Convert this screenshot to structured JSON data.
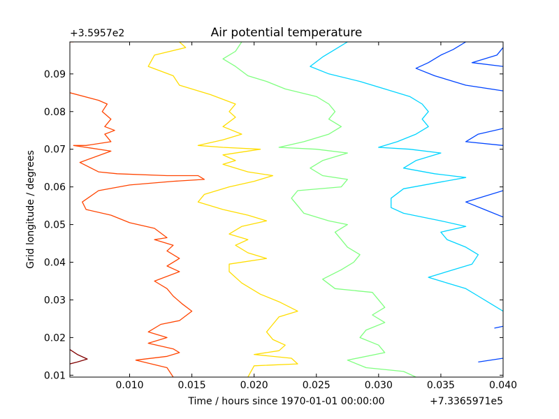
{
  "chart_data": {
    "type": "contour",
    "title": "Air potential temperature",
    "xlabel": "Time / hours since 1970-01-01 00:00:00",
    "ylabel": "Grid longitude / degrees",
    "x_offset_label": "+7.3365971e5",
    "y_offset_label": "+3.5957e2",
    "xlim": [
      0.0052,
      0.04
    ],
    "ylim": [
      0.0095,
      0.0985
    ],
    "xticks": [
      0.01,
      0.015,
      0.02,
      0.025,
      0.03,
      0.035,
      0.04
    ],
    "yticks": [
      0.01,
      0.02,
      0.03,
      0.04,
      0.05,
      0.06,
      0.07,
      0.08,
      0.09
    ],
    "xtick_labels": [
      "0.010",
      "0.015",
      "0.020",
      "0.025",
      "0.030",
      "0.035",
      "0.040"
    ],
    "ytick_labels": [
      "0.01",
      "0.02",
      "0.03",
      "0.04",
      "0.05",
      "0.06",
      "0.07",
      "0.08",
      "0.09"
    ],
    "colormap": "jet",
    "grid": false,
    "contours": [
      {
        "color": "#800000",
        "paths": [
          [
            [
              0.0052,
              0.0168
            ],
            [
              0.0058,
              0.0155
            ],
            [
              0.0066,
              0.0143
            ],
            [
              0.0058,
              0.0135
            ],
            [
              0.0052,
              0.013
            ]
          ]
        ]
      },
      {
        "color": "#ff4400",
        "paths": [
          [
            [
              0.0052,
              0.0985
            ],
            [
              0.0055,
              0.0985
            ]
          ],
          [
            [
              0.0052,
              0.085
            ],
            [
              0.0075,
              0.083
            ],
            [
              0.0082,
              0.082
            ],
            [
              0.0078,
              0.08
            ],
            [
              0.0085,
              0.078
            ],
            [
              0.008,
              0.076
            ],
            [
              0.0088,
              0.075
            ],
            [
              0.008,
              0.074
            ],
            [
              0.0085,
              0.072
            ],
            [
              0.0065,
              0.071
            ],
            [
              0.0055,
              0.071
            ],
            [
              0.0085,
              0.0695
            ],
            [
              0.006,
              0.0665
            ],
            [
              0.0075,
              0.064
            ],
            [
              0.009,
              0.0635
            ],
            [
              0.013,
              0.063
            ],
            [
              0.0155,
              0.063
            ],
            [
              0.016,
              0.062
            ],
            [
              0.0135,
              0.0615
            ],
            [
              0.01,
              0.0605
            ],
            [
              0.0075,
              0.059
            ],
            [
              0.0062,
              0.056
            ],
            [
              0.0065,
              0.054
            ],
            [
              0.0085,
              0.0525
            ],
            [
              0.01,
              0.0505
            ],
            [
              0.012,
              0.049
            ],
            [
              0.013,
              0.0465
            ],
            [
              0.012,
              0.046
            ],
            [
              0.0135,
              0.0445
            ],
            [
              0.013,
              0.043
            ],
            [
              0.014,
              0.041
            ],
            [
              0.013,
              0.039
            ],
            [
              0.014,
              0.0375
            ],
            [
              0.012,
              0.035
            ],
            [
              0.013,
              0.033
            ],
            [
              0.0135,
              0.031
            ],
            [
              0.0142,
              0.029
            ],
            [
              0.015,
              0.027
            ],
            [
              0.014,
              0.0245
            ],
            [
              0.0125,
              0.0235
            ],
            [
              0.0115,
              0.0215
            ],
            [
              0.013,
              0.02
            ],
            [
              0.0115,
              0.0185
            ],
            [
              0.0135,
              0.017
            ],
            [
              0.014,
              0.016
            ],
            [
              0.013,
              0.015
            ],
            [
              0.0105,
              0.014
            ],
            [
              0.013,
              0.012
            ],
            [
              0.0135,
              0.0095
            ]
          ]
        ]
      },
      {
        "color": "#ffdd00",
        "paths": [
          [
            [
              0.014,
              0.0985
            ],
            [
              0.0145,
              0.097
            ],
            [
              0.012,
              0.095
            ],
            [
              0.0115,
              0.092
            ],
            [
              0.0135,
              0.0895
            ],
            [
              0.014,
              0.087
            ],
            [
              0.0165,
              0.0845
            ],
            [
              0.0185,
              0.082
            ],
            [
              0.018,
              0.08
            ],
            [
              0.0185,
              0.0785
            ],
            [
              0.0175,
              0.076
            ],
            [
              0.019,
              0.074
            ],
            [
              0.0175,
              0.0725
            ],
            [
              0.0155,
              0.071
            ],
            [
              0.0175,
              0.0705
            ],
            [
              0.0205,
              0.07
            ],
            [
              0.0175,
              0.0685
            ],
            [
              0.0185,
              0.067
            ],
            [
              0.0175,
              0.066
            ],
            [
              0.0195,
              0.064
            ],
            [
              0.0215,
              0.063
            ],
            [
              0.02,
              0.0615
            ],
            [
              0.018,
              0.06
            ],
            [
              0.016,
              0.058
            ],
            [
              0.0155,
              0.056
            ],
            [
              0.0175,
              0.054
            ],
            [
              0.0195,
              0.0525
            ],
            [
              0.021,
              0.051
            ],
            [
              0.019,
              0.0495
            ],
            [
              0.018,
              0.0475
            ],
            [
              0.0195,
              0.046
            ],
            [
              0.0185,
              0.0445
            ],
            [
              0.0195,
              0.0425
            ],
            [
              0.021,
              0.041
            ],
            [
              0.018,
              0.0395
            ],
            [
              0.018,
              0.0375
            ],
            [
              0.019,
              0.0345
            ],
            [
              0.0205,
              0.0315
            ],
            [
              0.022,
              0.0295
            ],
            [
              0.0235,
              0.027
            ],
            [
              0.022,
              0.0255
            ],
            [
              0.0215,
              0.0235
            ],
            [
              0.021,
              0.0215
            ],
            [
              0.0215,
              0.0195
            ],
            [
              0.0225,
              0.018
            ],
            [
              0.022,
              0.0165
            ],
            [
              0.02,
              0.0155
            ],
            [
              0.023,
              0.0145
            ],
            [
              0.0235,
              0.013
            ],
            [
              0.02,
              0.0125
            ],
            [
              0.0195,
              0.0095
            ]
          ]
        ]
      },
      {
        "color": "#7fff7f",
        "paths": [
          [
            [
              0.019,
              0.0985
            ],
            [
              0.0185,
              0.096
            ],
            [
              0.0175,
              0.094
            ],
            [
              0.0185,
              0.092
            ],
            [
              0.0195,
              0.0895
            ],
            [
              0.021,
              0.088
            ],
            [
              0.0225,
              0.086
            ],
            [
              0.025,
              0.084
            ],
            [
              0.026,
              0.082
            ],
            [
              0.0265,
              0.08
            ],
            [
              0.026,
              0.078
            ],
            [
              0.027,
              0.076
            ],
            [
              0.026,
              0.074
            ],
            [
              0.024,
              0.072
            ],
            [
              0.022,
              0.0705
            ],
            [
              0.025,
              0.07
            ],
            [
              0.0275,
              0.069
            ],
            [
              0.0255,
              0.067
            ],
            [
              0.0245,
              0.065
            ],
            [
              0.0255,
              0.063
            ],
            [
              0.0275,
              0.062
            ],
            [
              0.027,
              0.06
            ],
            [
              0.0235,
              0.059
            ],
            [
              0.023,
              0.057
            ],
            [
              0.0235,
              0.055
            ],
            [
              0.024,
              0.053
            ],
            [
              0.026,
              0.051
            ],
            [
              0.0275,
              0.05
            ],
            [
              0.0265,
              0.048
            ],
            [
              0.027,
              0.046
            ],
            [
              0.0275,
              0.044
            ],
            [
              0.0285,
              0.042
            ],
            [
              0.028,
              0.04
            ],
            [
              0.027,
              0.038
            ],
            [
              0.0255,
              0.0355
            ],
            [
              0.0265,
              0.033
            ],
            [
              0.0295,
              0.032
            ],
            [
              0.03,
              0.03
            ],
            [
              0.0305,
              0.028
            ],
            [
              0.0295,
              0.026
            ],
            [
              0.0305,
              0.024
            ],
            [
              0.029,
              0.022
            ],
            [
              0.0285,
              0.02
            ],
            [
              0.03,
              0.018
            ],
            [
              0.0305,
              0.016
            ],
            [
              0.0275,
              0.014
            ],
            [
              0.029,
              0.012
            ],
            [
              0.032,
              0.011
            ],
            [
              0.033,
              0.0095
            ]
          ]
        ]
      },
      {
        "color": "#00d4ff",
        "paths": [
          [
            [
              0.0275,
              0.0985
            ],
            [
              0.0265,
              0.0965
            ],
            [
              0.0255,
              0.0945
            ],
            [
              0.0245,
              0.092
            ],
            [
              0.026,
              0.09
            ],
            [
              0.0285,
              0.088
            ],
            [
              0.0305,
              0.086
            ],
            [
              0.0325,
              0.084
            ],
            [
              0.0335,
              0.082
            ],
            [
              0.034,
              0.08
            ],
            [
              0.0335,
              0.078
            ],
            [
              0.034,
              0.076
            ],
            [
              0.033,
              0.074
            ],
            [
              0.0315,
              0.072
            ],
            [
              0.03,
              0.0705
            ],
            [
              0.0325,
              0.07
            ],
            [
              0.035,
              0.069
            ],
            [
              0.033,
              0.067
            ],
            [
              0.032,
              0.065
            ],
            [
              0.0345,
              0.0635
            ],
            [
              0.037,
              0.0625
            ],
            [
              0.0345,
              0.061
            ],
            [
              0.032,
              0.0595
            ],
            [
              0.031,
              0.057
            ],
            [
              0.031,
              0.0545
            ],
            [
              0.032,
              0.053
            ],
            [
              0.035,
              0.051
            ],
            [
              0.037,
              0.0495
            ],
            [
              0.035,
              0.048
            ],
            [
              0.0355,
              0.046
            ],
            [
              0.037,
              0.044
            ],
            [
              0.038,
              0.042
            ],
            [
              0.0375,
              0.0395
            ],
            [
              0.034,
              0.036
            ],
            [
              0.0355,
              0.0345
            ],
            [
              0.037,
              0.033
            ],
            [
              0.038,
              0.031
            ],
            [
              0.039,
              0.029
            ],
            [
              0.04,
              0.027
            ]
          ],
          [
            [
              0.0035,
              0.0095
            ],
            [
              0.004,
              0.01
            ]
          ]
        ]
      },
      {
        "color": "#0044ff",
        "paths": [
          [
            [
              0.037,
              0.0985
            ],
            [
              0.036,
              0.0965
            ],
            [
              0.035,
              0.095
            ],
            [
              0.034,
              0.093
            ],
            [
              0.033,
              0.0915
            ],
            [
              0.0345,
              0.0895
            ],
            [
              0.037,
              0.087
            ],
            [
              0.04,
              0.0855
            ]
          ],
          [
            [
              0.04,
              0.0755
            ],
            [
              0.038,
              0.074
            ],
            [
              0.037,
              0.072
            ],
            [
              0.04,
              0.071
            ]
          ],
          [
            [
              0.04,
              0.059
            ],
            [
              0.0385,
              0.0575
            ],
            [
              0.037,
              0.056
            ],
            [
              0.0385,
              0.054
            ],
            [
              0.04,
              0.052
            ]
          ],
          [
            [
              0.04,
              0.097
            ],
            [
              0.0395,
              0.095
            ],
            [
              0.0375,
              0.093
            ],
            [
              0.04,
              0.092
            ]
          ],
          [
            [
              0.0393,
              0.0225
            ],
            [
              0.04,
              0.023
            ]
          ],
          [
            [
              0.038,
              0.0135
            ],
            [
              0.04,
              0.0145
            ]
          ]
        ]
      }
    ]
  }
}
